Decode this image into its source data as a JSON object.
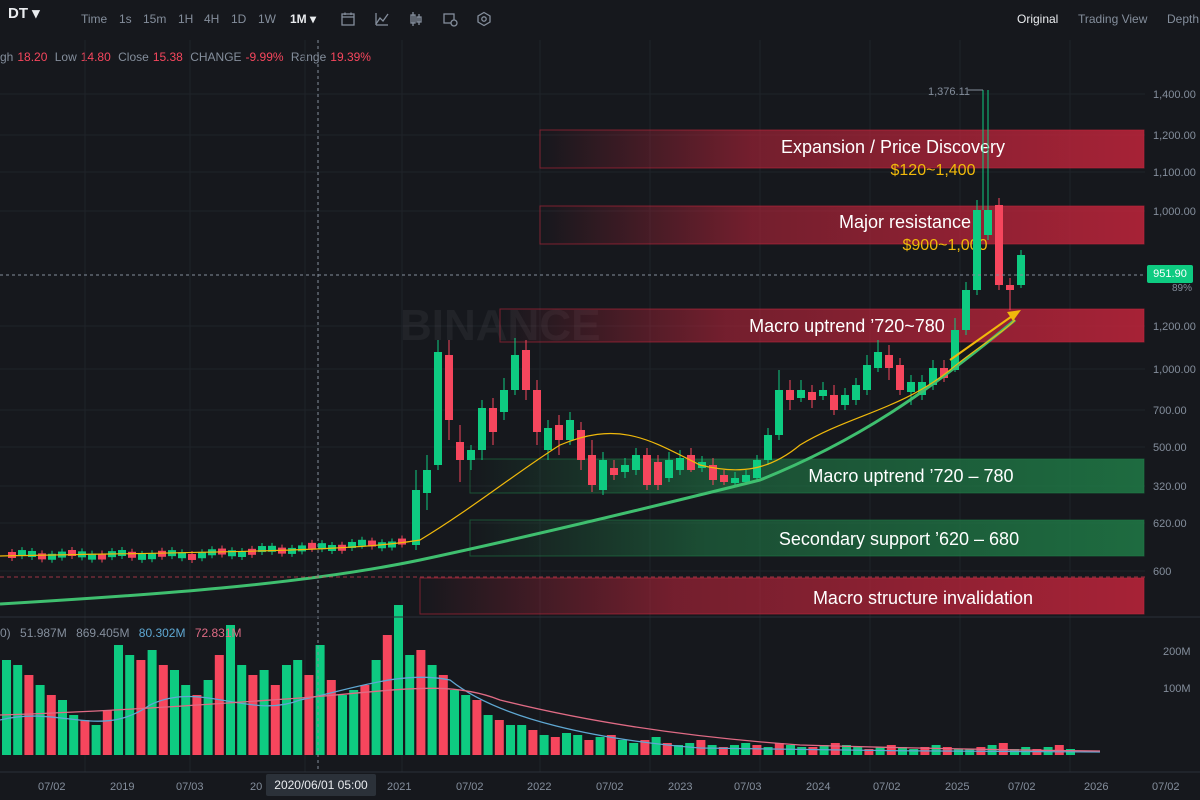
{
  "toolbar": {
    "symbol": "DT",
    "intervals": [
      "Time",
      "1s",
      "15m",
      "1H",
      "4H",
      "1D",
      "1W",
      "1M"
    ],
    "active_interval": "1M",
    "views": [
      "Original",
      "Trading View",
      "Depth"
    ],
    "active_view": "Original"
  },
  "ohlc": {
    "high_label": "gh",
    "high": "18.20",
    "low_label": "Low",
    "low": "14.80",
    "close_label": "Close",
    "close": "15.38",
    "change_label": "CHANGE",
    "change": "-9.99%",
    "range_label": "Range",
    "range": "19.39%"
  },
  "watermark": "BINANCE",
  "price_axis": [
    "1,400.00",
    "1,200.00",
    "1,100.00",
    "1,000.00",
    "1,200.00",
    "1,000.00",
    "700.00",
    "500.00",
    "320.00",
    "620.00",
    "600"
  ],
  "current_price": "951.90",
  "current_pct": "89%",
  "peak_label": "1,376.11",
  "zones": [
    {
      "title": "Expansion / Price Discovery",
      "sub": "$120~1,400",
      "color": "#c0243b"
    },
    {
      "title": "Major resistance",
      "sub": "$900~1,000",
      "color": "#c0243b"
    },
    {
      "title": "Macro uptrend ’720~780",
      "sub": "",
      "color": "#c0243b"
    },
    {
      "title": "Macro uptrend ’720 – 780",
      "sub": "",
      "color": "#1f7a46"
    },
    {
      "title": "Secondary support ’620 – 680",
      "sub": "",
      "color": "#1f7a46"
    },
    {
      "title": "Macro structure invalidation",
      "sub": "",
      "color": "#c0243b"
    }
  ],
  "volume": {
    "stats": [
      "0)",
      "51.987M",
      "869.405M",
      "80.302M",
      "72.831M"
    ],
    "axis": [
      "200M",
      "100M"
    ]
  },
  "time_axis": [
    "07/02",
    "2019",
    "07/03",
    "20",
    "2021",
    "07/02",
    "2022",
    "07/02",
    "2023",
    "07/03",
    "2024",
    "07/02",
    "2025",
    "07/02",
    "2026",
    "07/02"
  ],
  "crosshair_date": "2020/06/01 05:00",
  "colors": {
    "up": "#0ecb81",
    "down": "#f6465d",
    "ma_fast": "#f0b90b",
    "ma_slow": "#3fbf6f",
    "vol_ma1": "#5fa8d3",
    "vol_ma2": "#e06b85"
  }
}
